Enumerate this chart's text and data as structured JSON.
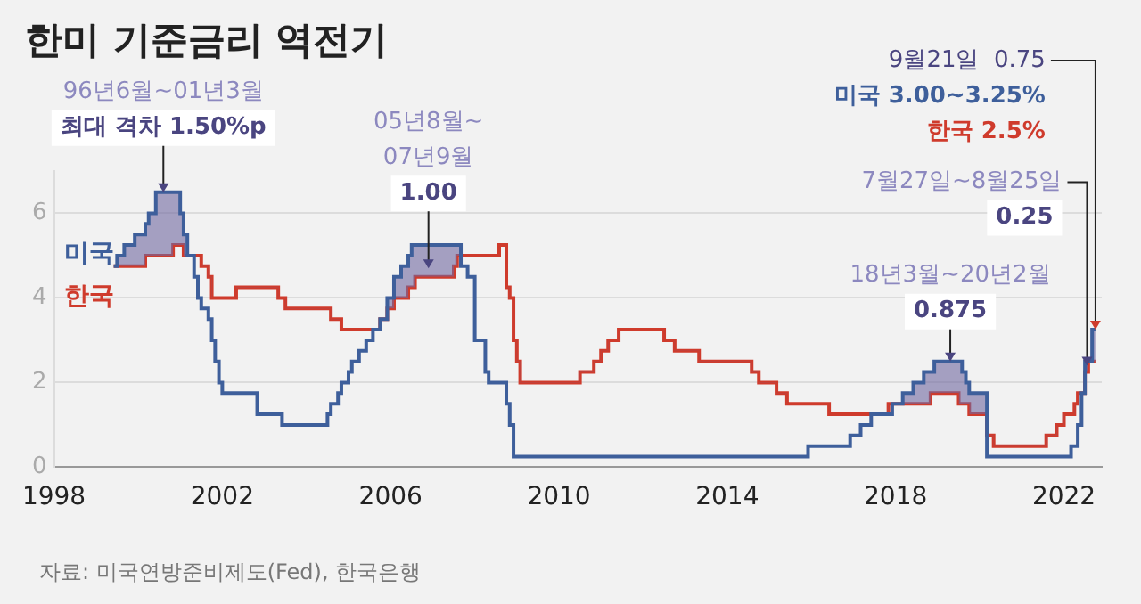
{
  "chart_data": {
    "type": "step",
    "title": "한미 기준금리 역전기",
    "x": [
      1999.42,
      1999.5,
      1999.67,
      1999.92,
      2000.17,
      2000.25,
      2000.42,
      2000.83,
      2001.0,
      2001.08,
      2001.17,
      2001.33,
      2001.42,
      2001.5,
      2001.67,
      2001.75,
      2001.83,
      2001.92,
      2002.0,
      2002.33,
      2002.83,
      2003.33,
      2003.42,
      2003.5,
      2004.5,
      2004.58,
      2004.75,
      2004.83,
      2005.0,
      2005.08,
      2005.25,
      2005.42,
      2005.58,
      2005.75,
      2005.92,
      2006.08,
      2006.25,
      2006.42,
      2006.5,
      2006.58,
      2007.5,
      2007.58,
      2007.67,
      2007.83,
      2008.0,
      2008.25,
      2008.33,
      2008.58,
      2008.75,
      2008.83,
      2008.92,
      2009.0,
      2009.08,
      2010.5,
      2010.83,
      2011.0,
      2011.17,
      2011.42,
      2012.5,
      2012.75,
      2013.33,
      2014.58,
      2014.75,
      2015.17,
      2015.42,
      2015.92,
      2016.42,
      2016.92,
      2017.17,
      2017.42,
      2017.83,
      2017.92,
      2018.17,
      2018.42,
      2018.67,
      2018.83,
      2018.92,
      2019.5,
      2019.58,
      2019.67,
      2019.75,
      2020.17,
      2020.33,
      2021.58,
      2021.83,
      2022.0,
      2022.17,
      2022.25,
      2022.33,
      2022.42,
      2022.5,
      2022.58,
      2022.67,
      2022.75
    ],
    "series": [
      {
        "name": "미국",
        "color": "#3e5f9b",
        "values": [
          4.75,
          5.0,
          5.25,
          5.5,
          5.75,
          6.0,
          6.5,
          6.5,
          6.0,
          5.5,
          5.0,
          4.5,
          4.0,
          3.75,
          3.5,
          3.0,
          2.5,
          2.0,
          1.75,
          1.75,
          1.25,
          1.25,
          1.0,
          1.0,
          1.25,
          1.5,
          1.75,
          2.0,
          2.25,
          2.5,
          2.75,
          3.0,
          3.25,
          3.5,
          4.0,
          4.5,
          4.75,
          5.0,
          5.25,
          5.25,
          5.25,
          5.25,
          4.75,
          4.5,
          3.0,
          2.25,
          2.0,
          2.0,
          1.5,
          1.0,
          0.25,
          0.25,
          0.25,
          0.25,
          0.25,
          0.25,
          0.25,
          0.25,
          0.25,
          0.25,
          0.25,
          0.25,
          0.25,
          0.25,
          0.25,
          0.5,
          0.5,
          0.75,
          1.0,
          1.25,
          1.25,
          1.5,
          1.75,
          2.0,
          2.25,
          2.25,
          2.5,
          2.5,
          2.25,
          2.0,
          1.75,
          0.25,
          0.25,
          0.25,
          0.25,
          0.25,
          0.5,
          0.5,
          1.0,
          1.75,
          2.5,
          2.5,
          3.25,
          3.25
        ]
      },
      {
        "name": "한국",
        "color": "#cf3b2c",
        "values": [
          4.75,
          4.75,
          4.75,
          4.75,
          5.0,
          5.0,
          5.0,
          5.25,
          5.25,
          5.0,
          5.0,
          5.0,
          5.0,
          4.75,
          4.5,
          4.0,
          4.0,
          4.0,
          4.0,
          4.25,
          4.25,
          4.0,
          4.0,
          3.75,
          3.75,
          3.5,
          3.5,
          3.25,
          3.25,
          3.25,
          3.25,
          3.25,
          3.25,
          3.5,
          3.75,
          4.0,
          4.0,
          4.25,
          4.25,
          4.5,
          4.75,
          5.0,
          5.0,
          5.0,
          5.0,
          5.0,
          5.0,
          5.25,
          4.25,
          4.0,
          3.0,
          2.5,
          2.0,
          2.25,
          2.5,
          2.75,
          3.0,
          3.25,
          3.0,
          2.75,
          2.5,
          2.25,
          2.0,
          1.75,
          1.5,
          1.5,
          1.25,
          1.25,
          1.25,
          1.25,
          1.5,
          1.5,
          1.5,
          1.5,
          1.5,
          1.75,
          1.75,
          1.5,
          1.5,
          1.5,
          1.25,
          0.75,
          0.5,
          0.75,
          1.0,
          1.25,
          1.25,
          1.5,
          1.75,
          1.75,
          2.25,
          2.5,
          2.5,
          2.5
        ]
      }
    ],
    "xlim": [
      1998,
      2022.9
    ],
    "xticks": [
      1998,
      2002,
      2006,
      2010,
      2014,
      2018,
      2022
    ],
    "ylim": [
      0,
      7
    ],
    "yticks": [
      0,
      2,
      4,
      6
    ],
    "grid": "y",
    "annotations": [
      {
        "text": "96년6월~01년3월\n최대 격차 1.50%p",
        "x": 2000.6,
        "y": 6.5
      },
      {
        "text": "05년8월~\n07년9월\n1.00",
        "x": 2006.9,
        "y": 4.7
      },
      {
        "text": "18년3월~20년2월\n0.875",
        "x": 2019.3,
        "y": 2.5
      },
      {
        "text": "7월27일~8월25일\n0.25",
        "x": 2022.55,
        "y": 2.4
      },
      {
        "text": "9월21일  0.75\n미국 3.00~3.25%\n한국 2.5%",
        "x": 2022.75,
        "y": 3.25
      },
      "자료: 미국연방준비제도(Fed), 한국은행"
    ]
  }
}
